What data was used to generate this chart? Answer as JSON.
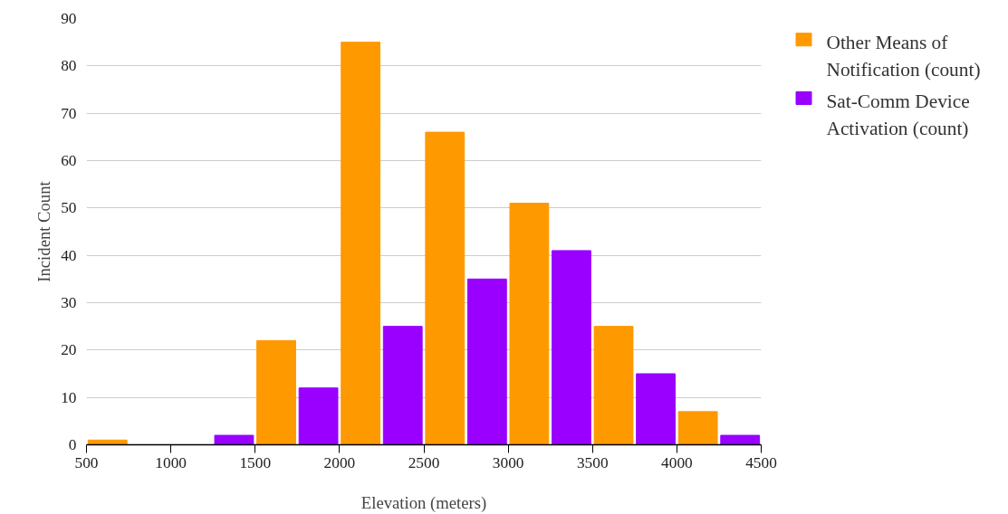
{
  "chart_data": {
    "type": "bar",
    "xlabel": "Elevation (meters)",
    "ylabel": "Incident Count",
    "xlim": [
      500,
      4500
    ],
    "xticks": [
      500,
      1000,
      1500,
      2000,
      2500,
      3000,
      3500,
      4000,
      4500
    ],
    "ylim": [
      0,
      90
    ],
    "yticks": [
      0,
      10,
      20,
      30,
      40,
      50,
      60,
      70,
      80,
      90
    ],
    "grid": "y",
    "legend": "top right",
    "series": [
      {
        "name": "Other Means of Notification (count)",
        "color": "#ff9900",
        "x": [
          625,
          1625,
          2125,
          2625,
          3125,
          3625,
          4125
        ],
        "values": [
          1,
          22,
          85,
          66,
          51,
          25,
          7
        ]
      },
      {
        "name": "Sat-Comm Device Activation (count)",
        "color": "#9900ff",
        "x": [
          1375,
          1875,
          2375,
          2875,
          3375,
          3875,
          4375
        ],
        "values": [
          2,
          12,
          25,
          35,
          41,
          15,
          2
        ]
      }
    ]
  }
}
